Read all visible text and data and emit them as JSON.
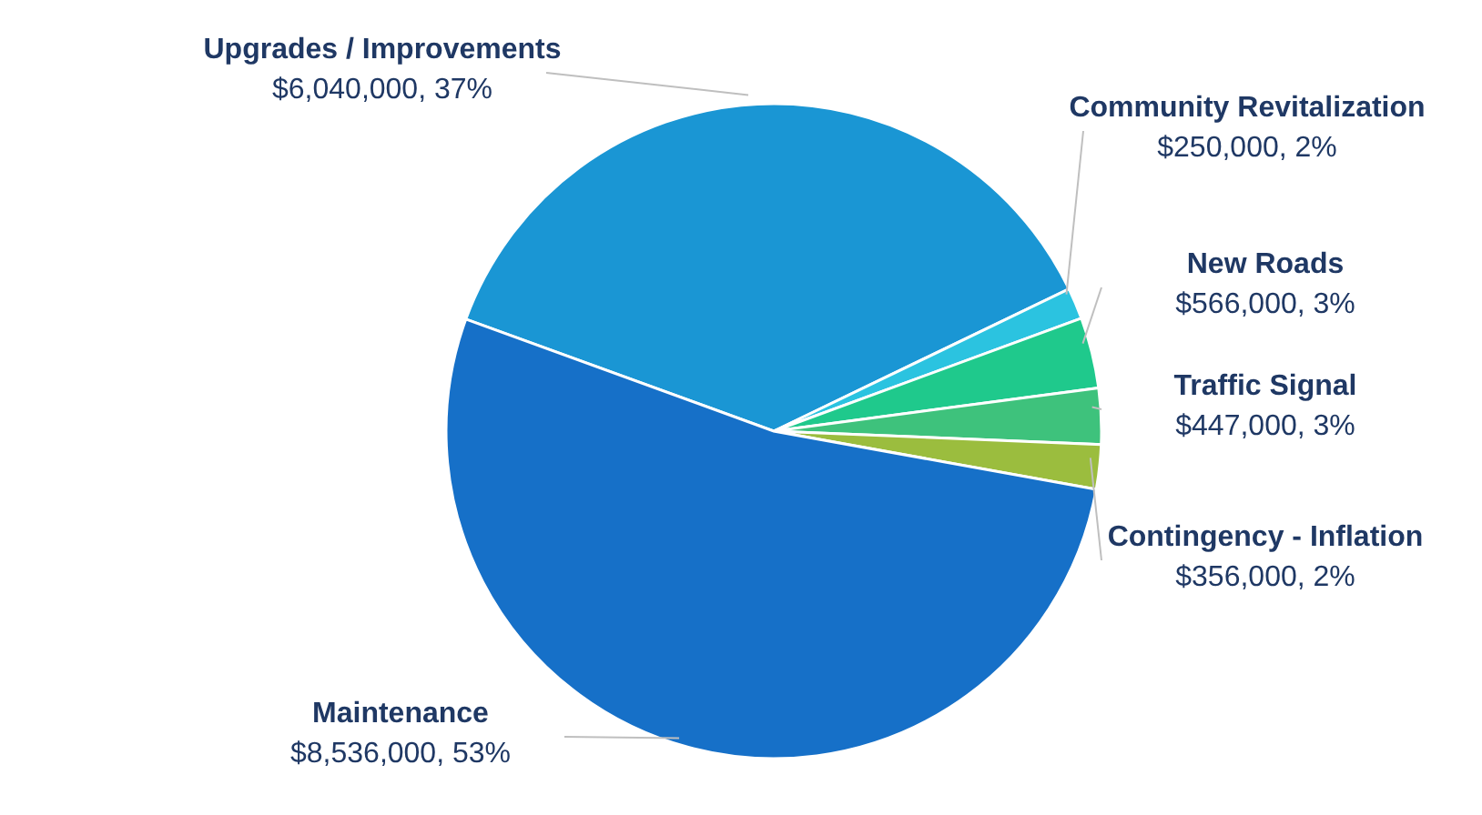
{
  "chart_data": {
    "type": "pie",
    "categories": [
      "Upgrades / Improvements",
      "Community Revitalization",
      "New Roads",
      "Traffic Signal",
      "Contingency - Inflation",
      "Maintenance"
    ],
    "values": [
      6040000,
      250000,
      566000,
      447000,
      356000,
      8536000
    ],
    "value_labels": [
      "$6,040,000, 37%",
      "$250,000, 2%",
      "$566,000, 3%",
      "$447,000, 3%",
      "$356,000, 2%",
      "$8,536,000, 53%"
    ],
    "colors": [
      "#1a96d4",
      "#2bc3e0",
      "#1fc98c",
      "#3ec27c",
      "#9bbd3e",
      "#1670c8"
    ],
    "legend": false
  }
}
